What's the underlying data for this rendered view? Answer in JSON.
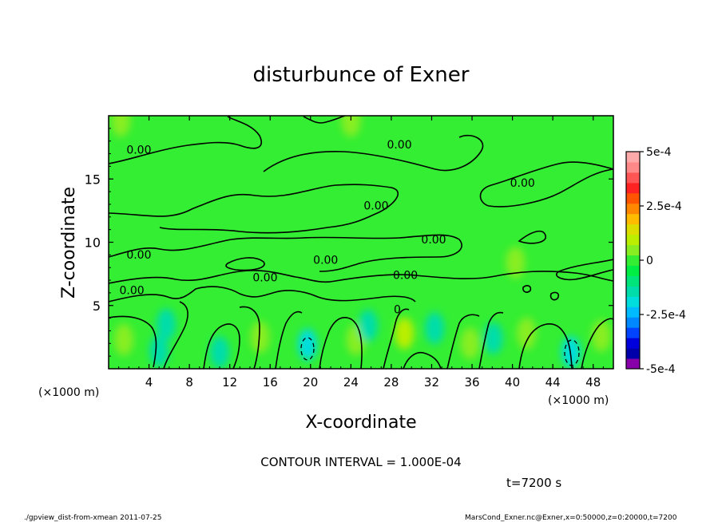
{
  "chart_data": {
    "type": "heatmap",
    "title": "disturbunce of Exner",
    "xlabel": "X-coordinate",
    "ylabel": "Z-coordinate",
    "x_unit_left": "(×1000 m)",
    "x_unit_right": "(×1000 m)",
    "xlim": [
      0,
      50
    ],
    "ylim": [
      0,
      20
    ],
    "x_ticks": [
      "4",
      "8",
      "12",
      "16",
      "20",
      "24",
      "28",
      "32",
      "36",
      "40",
      "44",
      "48"
    ],
    "x_tick_values": [
      4,
      8,
      12,
      16,
      20,
      24,
      28,
      32,
      36,
      40,
      44,
      48
    ],
    "y_ticks": [
      "5",
      "10",
      "15"
    ],
    "y_tick_values": [
      5,
      10,
      15
    ],
    "colorbar": {
      "min": -0.0005,
      "max": 0.0005,
      "tick_labels": [
        "5e-4",
        "2.5e-4",
        "0",
        "-2.5e-4",
        "-5e-4"
      ],
      "tick_values": [
        0.0005,
        0.00025,
        0,
        -0.00025,
        -0.0005
      ],
      "colors": [
        "#8800aa",
        "#0000aa",
        "#0000dd",
        "#0044ff",
        "#0088ff",
        "#00bbff",
        "#00dddd",
        "#00ddaa",
        "#00e57a",
        "#00ee44",
        "#33ee33",
        "#88ee22",
        "#bbee00",
        "#dddd00",
        "#ffbb00",
        "#ff8800",
        "#ff5500",
        "#ff2222",
        "#ff5555",
        "#ff8888",
        "#ffaaaa"
      ]
    },
    "background_value": 1e-05,
    "contour_interval": "CONTOUR INTERVAL = 1.000E-04",
    "contour_labels": [
      "0.00",
      "0.00",
      "0.00",
      "0.00",
      "0.00",
      "0.00",
      "0.00",
      "0.00",
      "0.00",
      "0.00",
      "0"
    ],
    "contour_label_points": [
      {
        "x": 3.0,
        "z": 17.0
      },
      {
        "x": 28.8,
        "z": 17.4
      },
      {
        "x": 41.0,
        "z": 14.4
      },
      {
        "x": 26.5,
        "z": 12.6
      },
      {
        "x": 32.2,
        "z": 9.9
      },
      {
        "x": 3.0,
        "z": 8.7
      },
      {
        "x": 21.5,
        "z": 8.3
      },
      {
        "x": 15.5,
        "z": 6.9
      },
      {
        "x": 29.4,
        "z": 7.1
      },
      {
        "x": 2.3,
        "z": 5.9
      },
      {
        "x": 28.6,
        "z": 4.4
      }
    ],
    "hot_spots": [
      {
        "x": 1.2,
        "z": 19.6,
        "value": 5e-05
      },
      {
        "x": 24.0,
        "z": 19.6,
        "value": 7e-05
      },
      {
        "x": 1.5,
        "z": 2.3,
        "value": 6e-05
      },
      {
        "x": 5.0,
        "z": 1.4,
        "value": -0.00013
      },
      {
        "x": 5.7,
        "z": 3.5,
        "value": -0.00012
      },
      {
        "x": 11.0,
        "z": 1.3,
        "value": -0.00013
      },
      {
        "x": 15.0,
        "z": 2.5,
        "value": 6e-05
      },
      {
        "x": 19.7,
        "z": 1.9,
        "value": -0.00017
      },
      {
        "x": 24.5,
        "z": 2.3,
        "value": 5e-05
      },
      {
        "x": 25.7,
        "z": 3.4,
        "value": -0.00013
      },
      {
        "x": 29.3,
        "z": 2.8,
        "value": 9e-05
      },
      {
        "x": 32.3,
        "z": 3.2,
        "value": -0.00012
      },
      {
        "x": 35.8,
        "z": 2.0,
        "value": 6e-05
      },
      {
        "x": 38.1,
        "z": 2.4,
        "value": -0.00012
      },
      {
        "x": 41.4,
        "z": 2.8,
        "value": 6e-05
      },
      {
        "x": 45.8,
        "z": 1.3,
        "value": -0.00017
      },
      {
        "x": 48.8,
        "z": 2.6,
        "value": 5e-05
      },
      {
        "x": 40.3,
        "z": 8.4,
        "value": 4e-05
      }
    ],
    "grid": false
  },
  "annotations": {
    "time": "t=7200 s",
    "footer_left": "./gpview_dist-from-xmean  2011-07-25",
    "footer_right": "MarsCond_Exner.nc@Exner,x=0:50000,z=0:20000,t=7200"
  }
}
